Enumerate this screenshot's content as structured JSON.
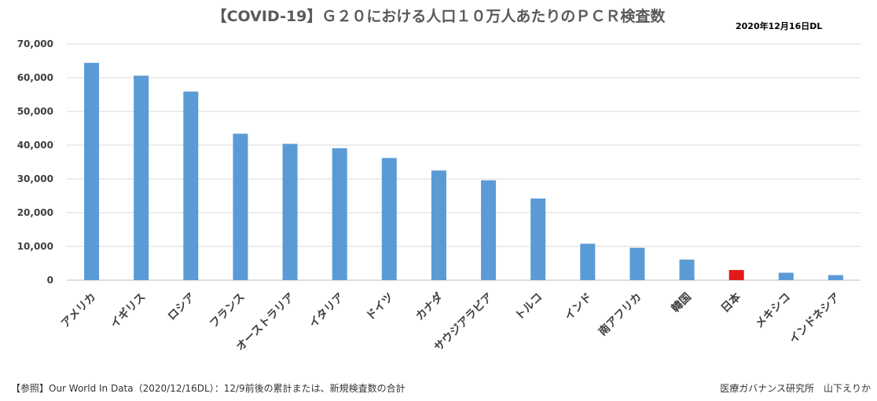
{
  "chart_data": {
    "type": "bar",
    "title": "【COVID-19】Ｇ２０における人口１０万人あたりのＰＣＲ検査数",
    "download_date": "2020年12月16日DL",
    "categories": [
      "アメリカ",
      "イギリス",
      "ロシア",
      "フランス",
      "オーストラリア",
      "イタリア",
      "ドイツ",
      "カナダ",
      "サウジアラビア",
      "トルコ",
      "インド",
      "南アフリカ",
      "韓国",
      "日本",
      "メキシコ",
      "インドネシア"
    ],
    "values": [
      64400,
      60600,
      55900,
      43400,
      40400,
      39100,
      36200,
      32500,
      29600,
      24200,
      10800,
      9600,
      6100,
      3000,
      2200,
      1500
    ],
    "highlight_index": 13,
    "bar_color": "#5b9bd5",
    "highlight_color": "#e31a1a",
    "ylim": [
      0,
      70000
    ],
    "yticks": [
      "0",
      "10,000",
      "20,000",
      "30,000",
      "40,000",
      "50,000",
      "60,000",
      "70,000"
    ],
    "grid": true,
    "xlabel": "",
    "ylabel": ""
  },
  "footer": {
    "source": "【参照】Our World In Data（2020/12/16DL）：12/9前後の累計または、新規検査数の合計",
    "credit": "医療ガバナンス研究所　山下えりか"
  }
}
